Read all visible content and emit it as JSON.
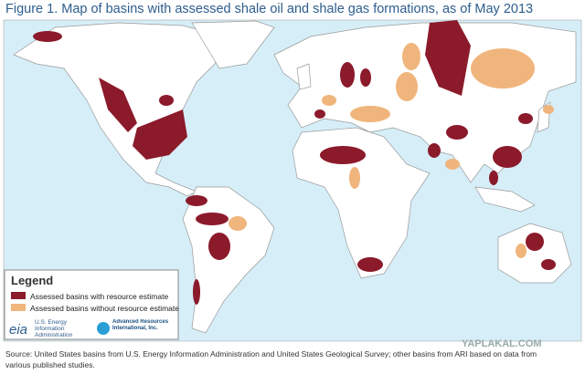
{
  "title": "Figure 1. Map of basins with assessed shale oil and shale gas formations, as of May 2013",
  "legend": {
    "title": "Legend",
    "items": [
      "Assessed basins with resource estimate",
      "Assessed basins without resource estimate"
    ]
  },
  "logos": {
    "eia": "eia",
    "eia_name": "U.S. Energy Information Administration",
    "ari_name": "Advanced Resources International, Inc."
  },
  "source": "Source: United States basins from U.S. Energy Information Administration and United States Geological Survey; other basins from ARI based on data from various published studies.",
  "watermark": "YAPLAKAL.COM"
}
